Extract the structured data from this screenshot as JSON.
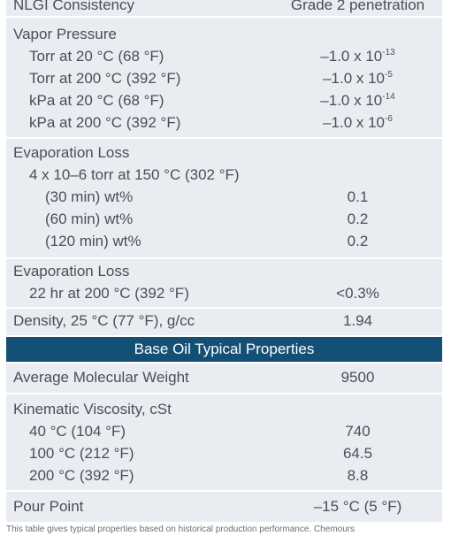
{
  "nlgi": {
    "label": "NLGI Consistency",
    "value": "Grade 2 penetration"
  },
  "vapor": {
    "title": "Vapor Pressure",
    "rows": [
      {
        "label": "Torr at 20 °C (68 °F)",
        "mant": "–1.0 x 10",
        "exp": "-13"
      },
      {
        "label": "Torr at 200 °C (392 °F)",
        "mant": "–1.0 x 10",
        "exp": "-5"
      },
      {
        "label": "kPa at 20 °C (68 °F)",
        "mant": "–1.0 x 10",
        "exp": "-14"
      },
      {
        "label": "kPa at 200 °C (392 °F)",
        "mant": "–1.0 x 10",
        "exp": "-6"
      }
    ]
  },
  "evap1": {
    "title": "Evaporation Loss",
    "condition": "4 x 10–6 torr at 150 °C (302 °F)",
    "rows": [
      {
        "label": "(30 min) wt%",
        "value": "0.1"
      },
      {
        "label": "(60 min) wt%",
        "value": "0.2"
      },
      {
        "label": "(120 min) wt%",
        "value": "0.2"
      }
    ]
  },
  "evap2": {
    "title": "Evaporation Loss",
    "row": {
      "label": "22 hr at 200 °C (392 °F)",
      "value": "<0.3%"
    }
  },
  "density": {
    "label": "Density, 25 °C (77 °F), g/cc",
    "value": "1.94"
  },
  "base_oil": {
    "title": "Base Oil Typical Properties"
  },
  "mw": {
    "label": "Average Molecular Weight",
    "value": "9500"
  },
  "viscosity": {
    "title": "Kinematic Viscosity, cSt",
    "rows": [
      {
        "label": "40 °C (104 °F)",
        "value": "740"
      },
      {
        "label": "100 °C (212 °F)",
        "value": "64.5"
      },
      {
        "label": "200 °C (392 °F)",
        "value": "8.8"
      }
    ]
  },
  "pour": {
    "label": "Pour Point",
    "value": "–15 °C (5 °F)"
  },
  "footnote": "This table gives typical properties based on historical production performance. Chemours"
}
